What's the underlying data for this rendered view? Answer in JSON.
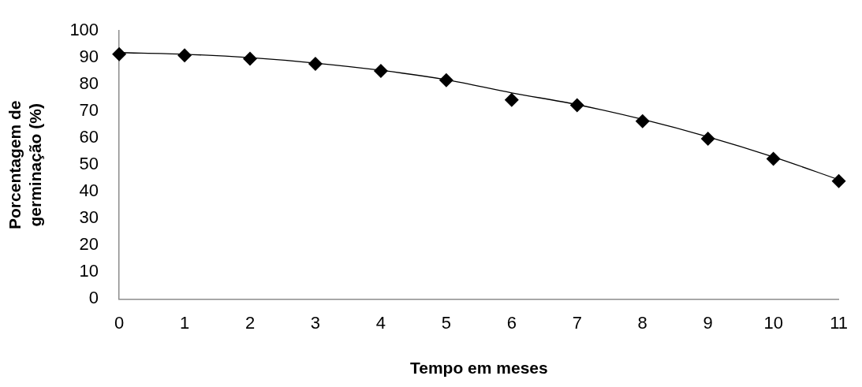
{
  "chart_data": {
    "type": "scatter",
    "xlabel": "Tempo em meses",
    "ylabel": "Porcentagem de germinação (%)",
    "x": [
      0,
      1,
      2,
      3,
      4,
      5,
      6,
      7,
      8,
      9,
      10,
      11
    ],
    "series": [
      {
        "color": "#000000",
        "marker": "diamond",
        "values": [
          91.3,
          90.9,
          89.6,
          87.7,
          85.1,
          81.6,
          74.3,
          72.3,
          66.3,
          59.8,
          52.3,
          44.0
        ]
      },
      {
        "type": "line",
        "color": "#000000",
        "marker": "none",
        "line_style": "solid",
        "x": [
          0,
          1,
          2,
          3,
          4,
          5,
          6,
          7,
          8,
          9,
          10,
          11
        ],
        "values": [
          91.9,
          91.3,
          90.0,
          88.0,
          85.3,
          81.8,
          76.9,
          72.5,
          67.0,
          60.5,
          53.0,
          44.5
        ]
      }
    ],
    "xlim": [
      0,
      11
    ],
    "xticks": [
      0,
      1,
      2,
      3,
      4,
      5,
      6,
      7,
      8,
      9,
      10,
      11
    ],
    "ylim": [
      0,
      100
    ],
    "yticks": [
      0,
      10,
      20,
      30,
      40,
      50,
      60,
      70,
      80,
      90,
      100
    ],
    "grid": false,
    "legend": false
  }
}
